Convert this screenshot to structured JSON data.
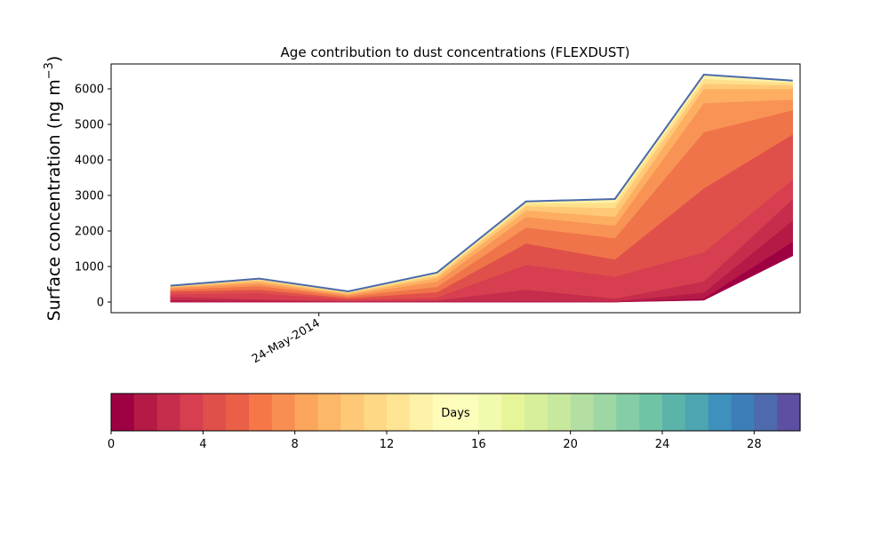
{
  "chart_data": {
    "type": "area",
    "stacked": true,
    "title": "Age contribution to dust concentrations (FLEXDUST)",
    "ylabel": "Surface concentration (ng m",
    "ylabel_sup": "−3",
    "ylabel_close": ")",
    "ylim": [
      -300,
      6700
    ],
    "yticks": [
      0,
      1000,
      2000,
      3000,
      4000,
      5000,
      6000
    ],
    "xlim": [
      -0.667,
      7.083
    ],
    "x": [
      0,
      1,
      2,
      3,
      4,
      5,
      6,
      7
    ],
    "xtick_positions": [
      1.67
    ],
    "xtick_labels": [
      "24-May-2014"
    ],
    "total": [
      460,
      660,
      300,
      830,
      2830,
      2900,
      6400,
      6230
    ],
    "layer_boundaries": [
      [
        0,
        0,
        0,
        0,
        0,
        0,
        50,
        1300
      ],
      [
        0,
        0,
        0,
        0,
        0,
        0,
        100,
        1700
      ],
      [
        60,
        40,
        10,
        20,
        30,
        20,
        270,
        2300
      ],
      [
        150,
        80,
        30,
        50,
        350,
        100,
        580,
        2900
      ],
      [
        220,
        250,
        70,
        130,
        1050,
        720,
        1400,
        3450
      ],
      [
        300,
        350,
        110,
        280,
        1650,
        1200,
        3200,
        4720
      ],
      [
        350,
        450,
        160,
        430,
        2100,
        1800,
        4780,
        5400
      ],
      [
        400,
        520,
        200,
        580,
        2400,
        2150,
        5600,
        5700
      ],
      [
        420,
        580,
        230,
        680,
        2580,
        2400,
        6000,
        6000
      ],
      [
        440,
        620,
        260,
        750,
        2700,
        2650,
        6150,
        6100
      ],
      [
        450,
        640,
        280,
        790,
        2770,
        2800,
        6280,
        6170
      ],
      [
        460,
        660,
        300,
        830,
        2830,
        2900,
        6400,
        6230
      ]
    ],
    "layer_colors": [
      "#9e0142",
      "#b51a46",
      "#c62d4c",
      "#d73e4f",
      "#e0504a",
      "#f07449",
      "#f89355",
      "#fdae61",
      "#fec877",
      "#fee08b",
      "#fff2a8"
    ],
    "total_line_color": "#4b6aaa",
    "colorbar": {
      "label": "Days",
      "min": 0,
      "max": 30,
      "ticks": [
        0,
        4,
        8,
        12,
        16,
        20,
        24,
        28
      ],
      "colors": [
        "#9e0142",
        "#b51a46",
        "#c62d4c",
        "#d73e4f",
        "#e0504a",
        "#ea5f47",
        "#f57748",
        "#f98e52",
        "#fca55d",
        "#fdb769",
        "#fec877",
        "#fed884",
        "#fee593",
        "#fef1a8",
        "#fffcba",
        "#fbfdba",
        "#f2faae",
        "#e6f598",
        "#d7ef9b",
        "#c7e99e",
        "#b3e0a2",
        "#9dd7a4",
        "#84cda6",
        "#6fc4a5",
        "#5bb3aa",
        "#4ca5b1",
        "#3e91bd",
        "#3d7eb8",
        "#4d6aac",
        "#5e4fa2"
      ]
    }
  }
}
